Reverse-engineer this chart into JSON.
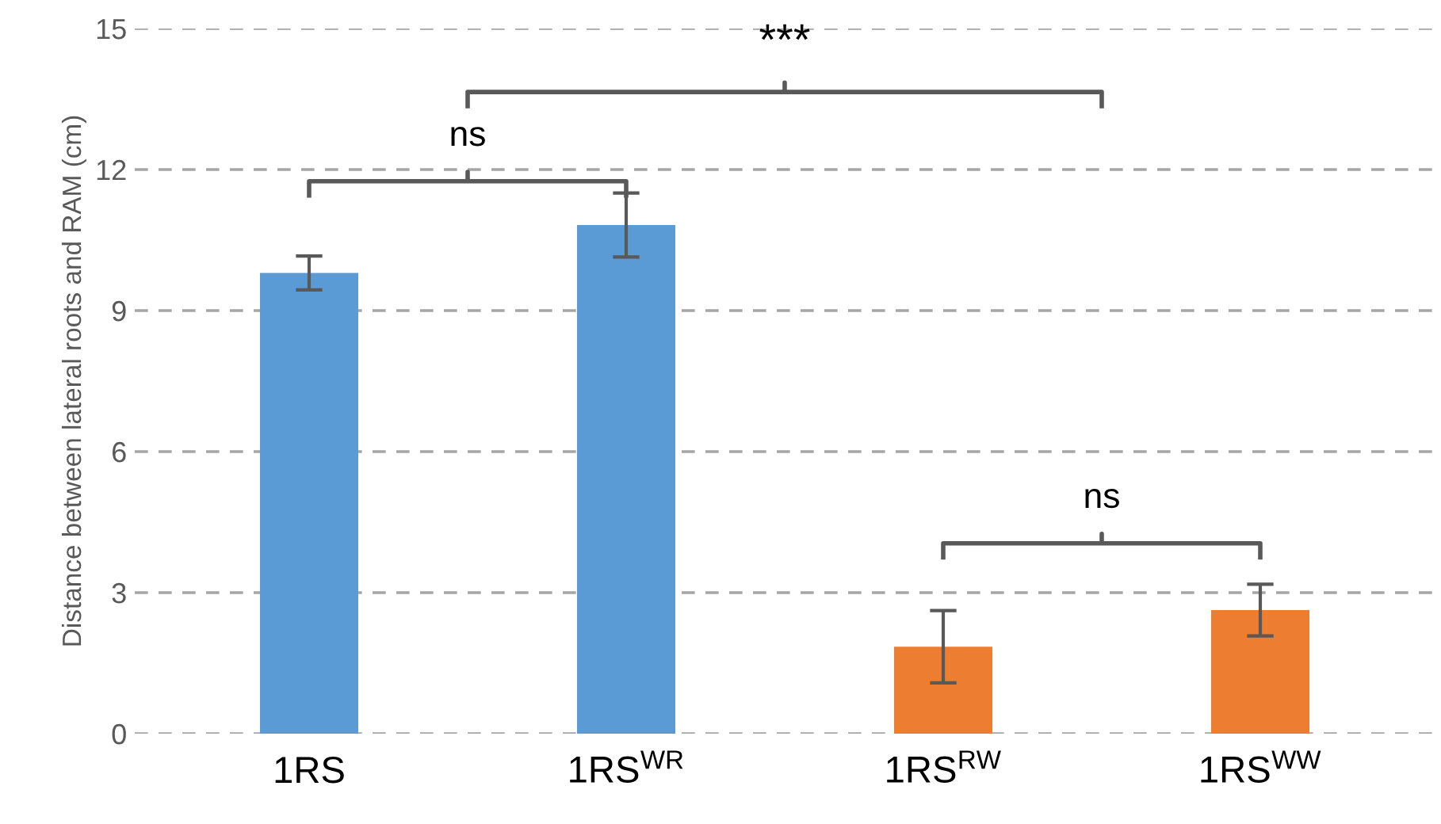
{
  "chart_data": {
    "type": "bar",
    "ylabel": "Distance between lateral roots and RAM (cm)",
    "categories": [
      "1RS",
      "1RS$^{WR}$",
      "1RS$^{RW}$",
      "1RS$^{WW}$"
    ],
    "values": [
      9.8,
      10.82,
      1.85,
      2.63
    ],
    "errors": [
      0.36,
      0.68,
      0.77,
      0.55
    ],
    "colors": [
      "#5b9bd5",
      "#5b9bd5",
      "#ed7d31",
      "#ed7d31"
    ],
    "ylim": [
      0,
      15
    ],
    "yticks": [
      0,
      3,
      6,
      9,
      12,
      15
    ],
    "grid": "y",
    "annotations": [
      "ns",
      "***",
      "ns"
    ]
  }
}
